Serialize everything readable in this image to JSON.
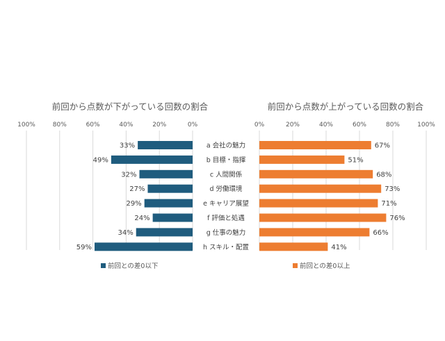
{
  "chart_data": [
    {
      "type": "bar",
      "orientation": "horizontal",
      "direction": "reversed",
      "title": "前回から点数が下がっている回数の割合",
      "categories": [
        "a 会社の魅力",
        "b 目標・指揮",
        "c 人間関係",
        "d 労働環境",
        "e キャリア展望",
        "f 評価と処遇",
        "g 仕事の魅力",
        "h スキル・配置"
      ],
      "series": [
        {
          "name": "前回との差0以下",
          "values": [
            33,
            49,
            32,
            27,
            29,
            24,
            34,
            59
          ],
          "color": "#1F5C7E"
        }
      ],
      "data_labels": [
        "33%",
        "49%",
        "32%",
        "27%",
        "29%",
        "24%",
        "34%",
        "59%"
      ],
      "xlim": [
        0,
        100
      ],
      "ticks": [
        "0%",
        "20%",
        "40%",
        "60%",
        "80%",
        "100%"
      ],
      "grid": true,
      "legend_position": "bottom-left"
    },
    {
      "type": "bar",
      "orientation": "horizontal",
      "title": "前回から点数が上がっている回数の割合",
      "categories": [
        "a 会社の魅力",
        "b 目標・指揮",
        "c 人間関係",
        "d 労働環境",
        "e キャリア展望",
        "f 評価と処遇",
        "g 仕事の魅力",
        "h スキル・配置"
      ],
      "series": [
        {
          "name": "前回との差0以上",
          "values": [
            67,
            51,
            68,
            73,
            71,
            76,
            66,
            41
          ],
          "color": "#ED7D31"
        }
      ],
      "data_labels": [
        "67%",
        "51%",
        "68%",
        "73%",
        "71%",
        "76%",
        "66%",
        "41%"
      ],
      "xlim": [
        0,
        100
      ],
      "ticks": [
        "0%",
        "20%",
        "40%",
        "60%",
        "80%",
        "100%"
      ],
      "grid": true,
      "legend_position": "bottom-left"
    }
  ]
}
